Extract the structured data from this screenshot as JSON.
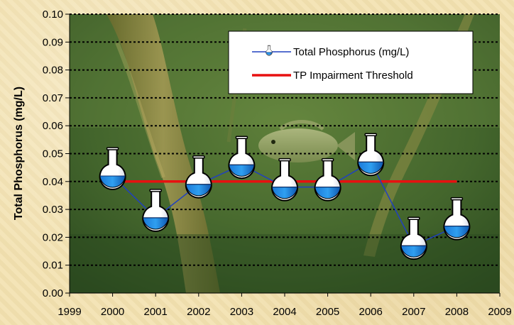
{
  "chart_data": {
    "type": "line",
    "ylabel": "Total Phosphorus (mg/L)",
    "xlabel": "",
    "x_ticks": [
      "1999",
      "2000",
      "2001",
      "2002",
      "2003",
      "2004",
      "2005",
      "2006",
      "2007",
      "2008",
      "2009"
    ],
    "y_ticks": [
      "0.00",
      "0.01",
      "0.02",
      "0.03",
      "0.04",
      "0.05",
      "0.06",
      "0.07",
      "0.08",
      "0.09",
      "0.10"
    ],
    "xlim": [
      1999,
      2009
    ],
    "ylim": [
      0,
      0.1
    ],
    "grid": "horizontal dotted",
    "legend_position": "top-right",
    "series": [
      {
        "name": "Total Phosphorus (mg/L)",
        "color": "#2040c0",
        "marker": "flask-icon",
        "x": [
          2000,
          2001,
          2002,
          2003,
          2004,
          2005,
          2006,
          2007,
          2008
        ],
        "y": [
          0.042,
          0.027,
          0.039,
          0.046,
          0.038,
          0.038,
          0.047,
          0.017,
          0.024
        ]
      },
      {
        "name": "TP Impairment Threshold",
        "color": "#e81010",
        "x": [
          2000,
          2008
        ],
        "y": [
          0.04,
          0.04
        ]
      }
    ]
  }
}
